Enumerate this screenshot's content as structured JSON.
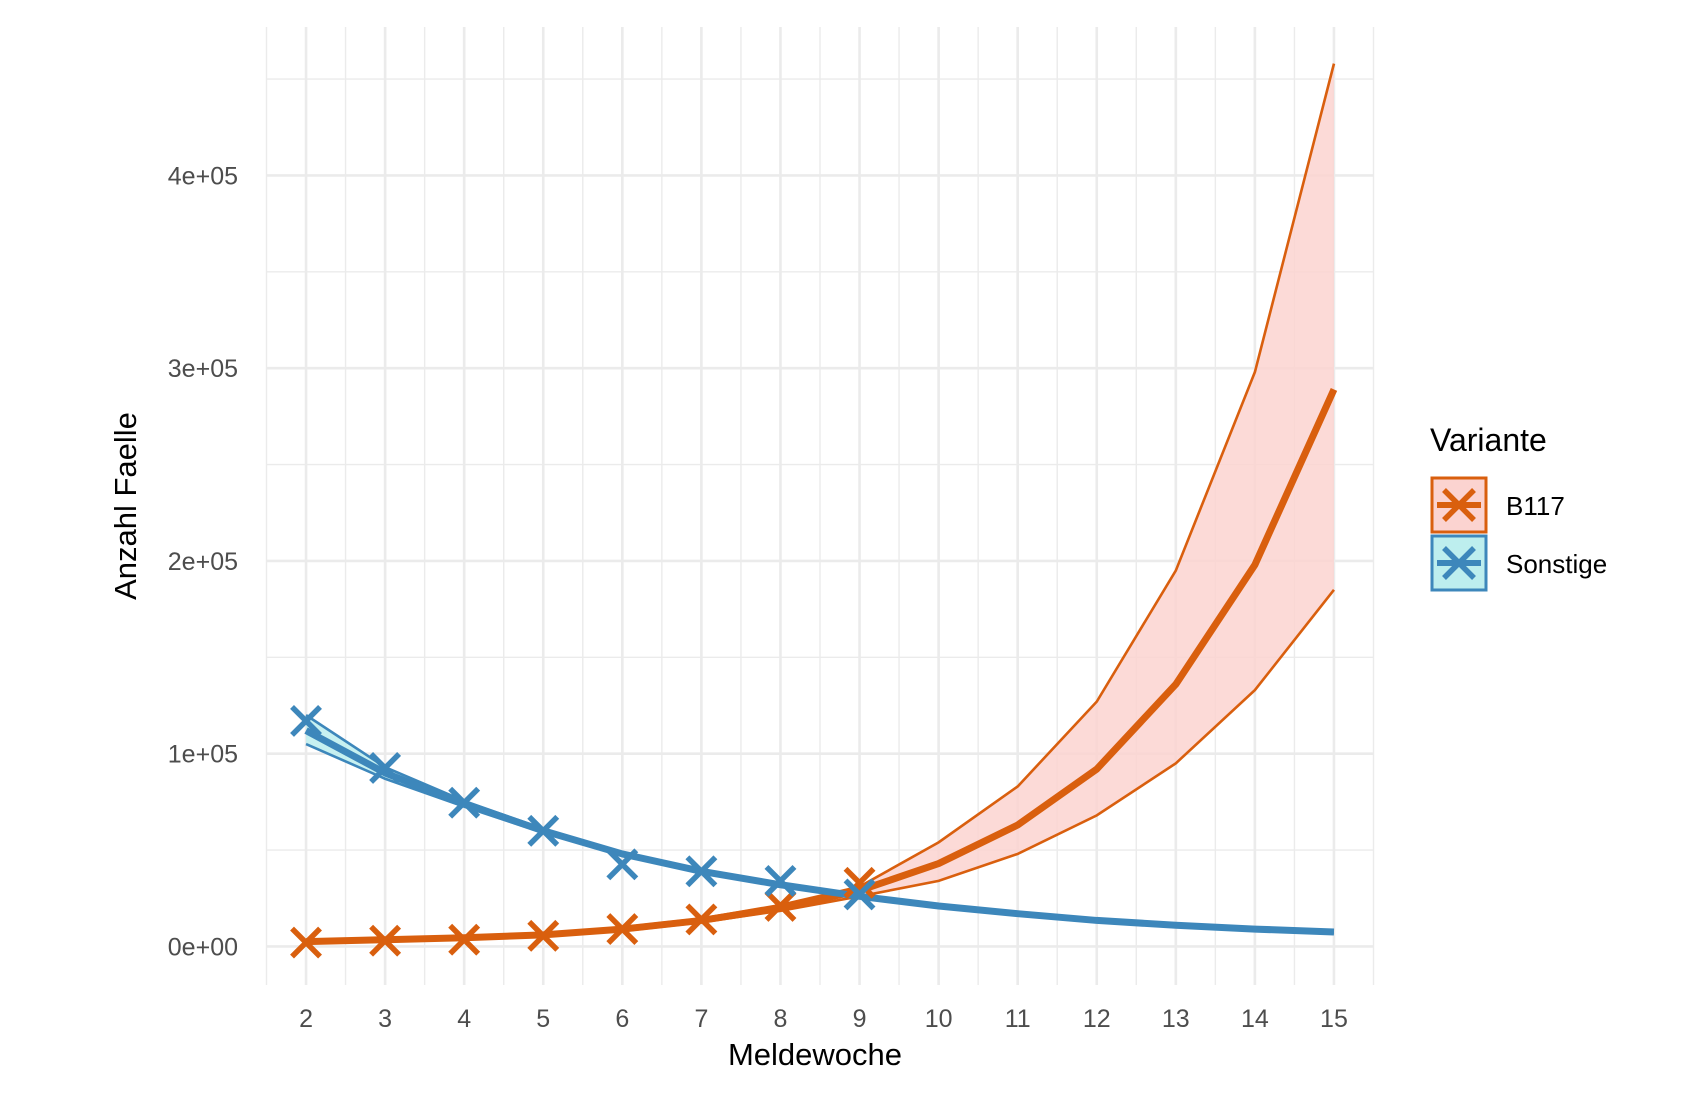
{
  "chart_data": {
    "type": "line",
    "title": "",
    "xlabel": "Meldewoche",
    "ylabel": "Anzahl Faelle",
    "xlim": [
      1.5,
      15.5
    ],
    "ylim": [
      -20000,
      477000
    ],
    "grid": true,
    "x_ticks": [
      2,
      3,
      4,
      5,
      6,
      7,
      8,
      9,
      10,
      11,
      12,
      13,
      14,
      15
    ],
    "y_ticks": [
      0,
      100000,
      200000,
      300000,
      400000
    ],
    "y_tick_labels": [
      "0e+00",
      "1e+05",
      "2e+05",
      "3e+05",
      "4e+05"
    ],
    "legend": {
      "title": "Variante",
      "placement": "right"
    },
    "series": [
      {
        "name": "B117",
        "color": "#d95f0e",
        "ribbon_color": "#fbd3d0",
        "points_x": [
          2,
          3,
          4,
          5,
          6,
          7,
          8,
          9
        ],
        "points_y": [
          2000,
          3000,
          3500,
          5500,
          9000,
          14000,
          21000,
          33000
        ],
        "fit_x": [
          2,
          3,
          4,
          5,
          6,
          7,
          8,
          9,
          10,
          11,
          12,
          13,
          14,
          15
        ],
        "fit_y": [
          2500,
          3500,
          4500,
          6000,
          9000,
          13500,
          20000,
          29000,
          43000,
          63000,
          92000,
          136000,
          198000,
          289000
        ],
        "lower": [
          2000,
          3000,
          4000,
          5500,
          8000,
          12500,
          18500,
          26000,
          34000,
          48000,
          68000,
          95000,
          133000,
          185000
        ],
        "upper": [
          3000,
          4000,
          5000,
          6500,
          10000,
          14500,
          21500,
          31000,
          54000,
          83000,
          127000,
          195000,
          298000,
          458000
        ]
      },
      {
        "name": "Sonstige",
        "color": "#3d87bb",
        "ribbon_color": "#bdeeee",
        "points_x": [
          2,
          3,
          4,
          5,
          6,
          7,
          8,
          9
        ],
        "points_y": [
          117000,
          92600,
          74600,
          60000,
          42600,
          39000,
          34000,
          27000
        ],
        "fit_x": [
          2,
          3,
          4,
          5,
          6,
          7,
          8,
          9,
          10,
          11,
          12,
          13,
          14,
          15
        ],
        "fit_y": [
          112000,
          90000,
          74000,
          60000,
          48000,
          39000,
          32000,
          26000,
          21000,
          17000,
          13500,
          11000,
          9000,
          7500
        ],
        "lower": [
          105000,
          87000,
          72500,
          59000,
          47500,
          38500,
          31500,
          25500,
          20500,
          16500,
          13000,
          10500,
          8500,
          7000
        ],
        "upper": [
          120000,
          93000,
          75500,
          61000,
          48500,
          39500,
          32500,
          26500,
          21500,
          17500,
          14000,
          11500,
          9500,
          8000
        ]
      }
    ]
  }
}
